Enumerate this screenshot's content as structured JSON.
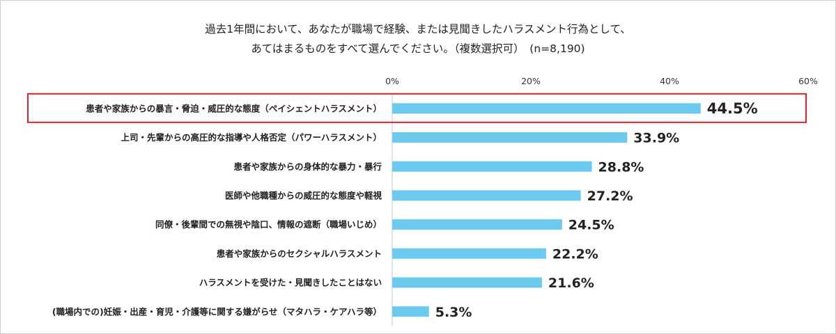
{
  "title_lines": [
    "過去1年間において、あなたが職場で経験、または見聞きしたハラスメント行為として、",
    "あてはまるものをすべて選んでください。（複数選択可）　(n=8,190)"
  ],
  "colors": {
    "bar": "#6bcaee",
    "highlight_border": "#e0202a",
    "axis": "#c8c8c8"
  },
  "chart_data": {
    "type": "bar",
    "orientation": "horizontal",
    "title": "過去1年間において、あなたが職場で経験、または見聞きしたハラスメント行為として、あてはまるものをすべて選んでください。（複数選択可）　(n=8,190)",
    "categories": [
      "患者や家族からの暴言・脅迫・威圧的な態度（ペイシェントハラスメント）",
      "上司・先輩からの高圧的な指導や人格否定（パワーハラスメント）",
      "患者や家族からの身体的な暴力・暴行",
      "医師や他職種からの威圧的な態度や軽視",
      "同僚・後輩間での無視や陰口、情報の遮断（職場いじめ）",
      "患者や家族からのセクシャルハラスメント",
      "ハラスメントを受けた・見聞きしたことはない",
      "(職場内での)妊娠・出産・育児・介護等に関する嫌がらせ（マタハラ・ケアハラ等）"
    ],
    "values": [
      44.5,
      33.9,
      28.8,
      27.2,
      24.5,
      22.2,
      21.6,
      5.3
    ],
    "value_labels": [
      "44.5%",
      "33.9%",
      "28.8%",
      "27.2%",
      "24.5%",
      "22.2%",
      "21.6%",
      "5.3%"
    ],
    "xlim": [
      0,
      60
    ],
    "xticks": [
      0,
      20,
      40,
      60
    ],
    "xtick_labels": [
      "0%",
      "20%",
      "40%",
      "60%"
    ],
    "highlight_index": 0,
    "grid": false,
    "legend": "none",
    "xlabel": "",
    "ylabel": ""
  }
}
